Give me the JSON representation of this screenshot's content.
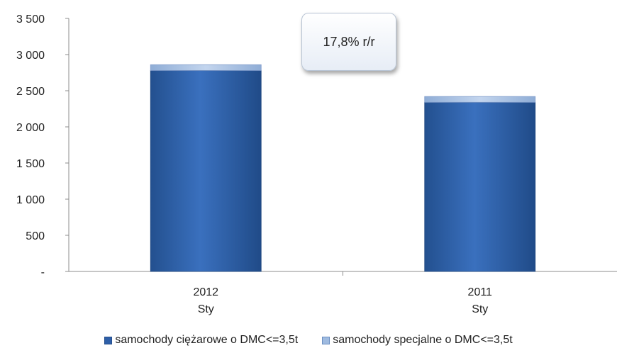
{
  "chart_data": {
    "type": "bar",
    "stacked": true,
    "categories": [
      {
        "year": "2012",
        "month": "Sty"
      },
      {
        "year": "2011",
        "month": "Sty"
      }
    ],
    "series": [
      {
        "name": "samochody ciężarowe o DMC<=3,5t",
        "values": [
          2780,
          2340
        ],
        "color": "#2e5fa8"
      },
      {
        "name": "samochody specjalne o DMC<=3,5t",
        "values": [
          80,
          80
        ],
        "color": "#9fbbe0"
      }
    ],
    "ylim": [
      0,
      3500
    ],
    "y_ticks": [
      "-",
      "500",
      "1 000",
      "1 500",
      "2 000",
      "2 500",
      "3 000",
      "3 500"
    ],
    "grid": false,
    "legend_position": "bottom",
    "annotation": "17,8% r/r",
    "xlabel": "",
    "ylabel": ""
  }
}
